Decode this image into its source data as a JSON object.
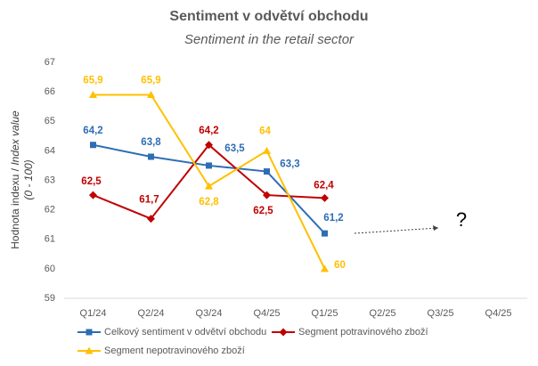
{
  "chart_data": {
    "type": "line",
    "title": "Sentiment v odvětví obchodu",
    "subtitle": "Sentiment in the retail sector",
    "ylabel": {
      "main": "Hodnota indexu / ",
      "italic": "Index value",
      "unit": "(0 - 100)"
    },
    "categories": [
      "Q1/24",
      "Q2/24",
      "Q3/24",
      "Q4/25",
      "Q1/25",
      "Q2/25",
      "Q3/25",
      "Q4/25"
    ],
    "ylim": [
      59,
      67
    ],
    "yticks": [
      59,
      60,
      61,
      62,
      63,
      64,
      65,
      66,
      67
    ],
    "grid": false,
    "legend": "bottom",
    "series": [
      {
        "name": "Celkový sentiment v odvětví obchodu",
        "color": "#2e6db4",
        "marker": "square",
        "values": [
          64.2,
          63.8,
          63.5,
          63.3,
          61.2,
          null,
          null,
          null
        ],
        "value_labels": [
          "64,2",
          "63,8",
          "63,5",
          "63,3",
          "61,2",
          null,
          null,
          null
        ]
      },
      {
        "name": "Segment potravinového zboží",
        "color": "#c00000",
        "marker": "diamond",
        "values": [
          62.5,
          61.7,
          64.2,
          62.5,
          62.4,
          null,
          null,
          null
        ],
        "value_labels": [
          "62,5",
          "61,7",
          "64,2",
          "62,5",
          "62,4",
          null,
          null,
          null
        ]
      },
      {
        "name": "Segment nepotravinového zboží",
        "color": "#ffc000",
        "marker": "triangle",
        "values": [
          65.9,
          65.9,
          62.8,
          64,
          60,
          null,
          null,
          null
        ],
        "value_labels": [
          "65,9",
          "65,9",
          "62,8",
          "64",
          "60",
          null,
          null,
          null
        ]
      }
    ],
    "annotation": "?"
  }
}
